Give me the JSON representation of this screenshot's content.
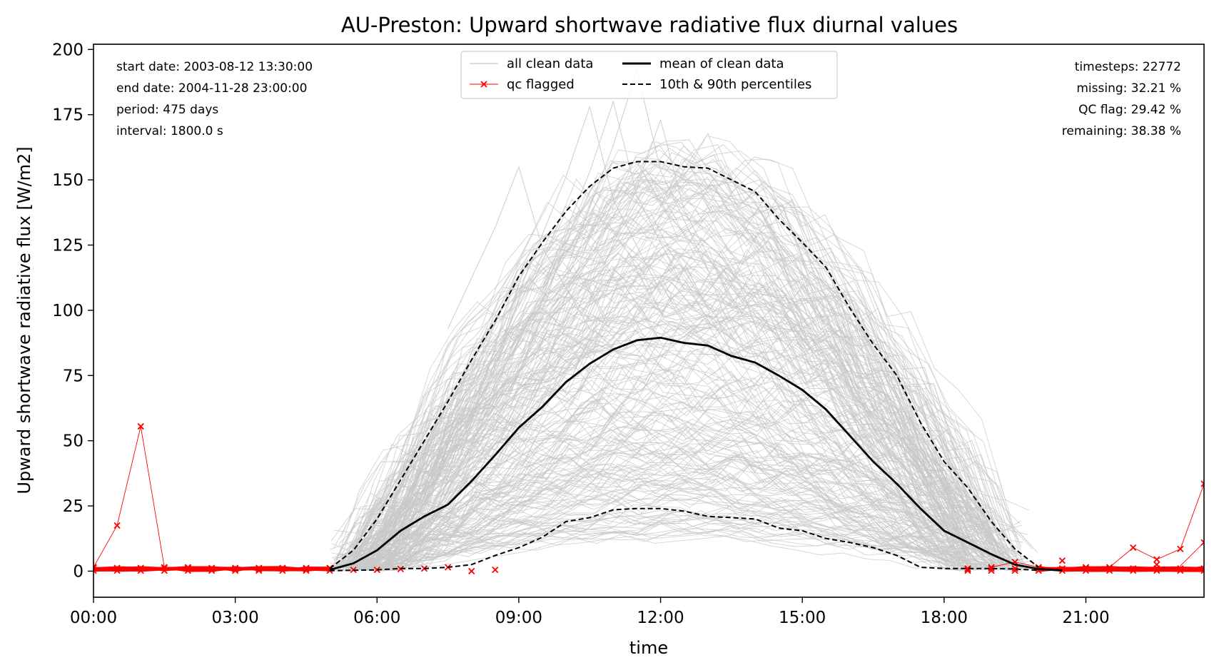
{
  "chart_data": {
    "type": "line",
    "title": "AU-Preston: Upward shortwave radiative flux diurnal values",
    "xlabel": "time",
    "ylabel": "Upward shortwave radiative flux [W/m2]",
    "x_unit": "hours",
    "xlim": [
      0,
      23.5
    ],
    "ylim": [
      -10,
      202
    ],
    "x_ticks": [
      {
        "value": 0,
        "label": "00:00"
      },
      {
        "value": 3,
        "label": "03:00"
      },
      {
        "value": 6,
        "label": "06:00"
      },
      {
        "value": 9,
        "label": "09:00"
      },
      {
        "value": 12,
        "label": "12:00"
      },
      {
        "value": 15,
        "label": "15:00"
      },
      {
        "value": 18,
        "label": "18:00"
      },
      {
        "value": 21,
        "label": "21:00"
      }
    ],
    "y_ticks": [
      {
        "value": 0,
        "label": "0"
      },
      {
        "value": 25,
        "label": "25"
      },
      {
        "value": 50,
        "label": "50"
      },
      {
        "value": 75,
        "label": "75"
      },
      {
        "value": 100,
        "label": "100"
      },
      {
        "value": 125,
        "label": "125"
      },
      {
        "value": 150,
        "label": "150"
      },
      {
        "value": 175,
        "label": "175"
      },
      {
        "value": 200,
        "label": "200"
      }
    ],
    "grid": false,
    "legend_position": "top-center",
    "info_left": [
      "start date: 2003-08-12 13:30:00",
      "end date: 2004-11-28 23:00:00",
      "period: 475 days",
      "interval: 1800.0 s"
    ],
    "info_right": [
      "timesteps: 22772",
      "missing: 32.21 %",
      "QC flag: 29.42 %",
      "remaining: 38.38 %"
    ],
    "colors": {
      "clean": "#c8c8c8",
      "qc": "#ff0000",
      "mean": "#000000",
      "percentile": "#000000"
    },
    "series": [
      {
        "name": "mean of clean data",
        "style": "solid",
        "x": [
          5.0,
          5.5,
          6.0,
          6.5,
          7.0,
          7.5,
          8.0,
          8.5,
          9.0,
          9.5,
          10.0,
          10.5,
          11.0,
          11.5,
          12.0,
          12.5,
          13.0,
          13.5,
          14.0,
          14.5,
          15.0,
          15.5,
          16.0,
          16.5,
          17.0,
          17.5,
          18.0,
          18.5,
          19.0,
          19.5,
          20.0,
          20.5
        ],
        "y": [
          0.5,
          3,
          8,
          15.5,
          21,
          25.5,
          34.5,
          44.5,
          55,
          63,
          72.5,
          79.5,
          85,
          88.5,
          89.5,
          87.5,
          86.5,
          82.5,
          80,
          75,
          69.5,
          62,
          52,
          42,
          33.5,
          24,
          15.5,
          11,
          6.5,
          2.5,
          0.8,
          0.3
        ]
      },
      {
        "name": "10th & 90th percentiles",
        "style": "dashed",
        "x": [
          5.0,
          5.5,
          6.0,
          6.5,
          7.0,
          7.5,
          8.0,
          8.5,
          9.0,
          9.5,
          10.0,
          10.5,
          11.0,
          11.5,
          12.0,
          12.5,
          13.0,
          13.5,
          14.0,
          14.5,
          15.0,
          15.5,
          16.0,
          16.5,
          17.0,
          17.5,
          18.0,
          18.5,
          19.0,
          19.5,
          20.0
        ],
        "y": [
          1,
          8,
          20,
          35,
          50,
          65,
          81,
          96,
          113,
          126,
          138,
          147.5,
          154.5,
          157,
          157,
          155,
          154.5,
          150,
          145.5,
          135,
          126,
          116.5,
          101,
          87,
          75,
          57,
          42,
          32,
          19,
          8.5,
          1.5
        ]
      },
      {
        "name": "10th percentile",
        "style": "dashed",
        "x": [
          5.0,
          5.5,
          6.0,
          6.5,
          7.0,
          7.5,
          8.0,
          8.5,
          9.0,
          9.5,
          10.0,
          10.5,
          11.0,
          11.5,
          12.0,
          12.5,
          13.0,
          13.5,
          14.0,
          14.5,
          15.0,
          15.5,
          16.0,
          16.5,
          17.0,
          17.5,
          18.0,
          18.5,
          19.0,
          19.5,
          20.0
        ],
        "y": [
          0.2,
          0.3,
          0.5,
          1,
          1,
          1.5,
          2.5,
          6,
          9,
          13,
          19,
          20.5,
          23.5,
          24,
          24,
          23,
          21,
          20.5,
          20,
          16.5,
          15.5,
          12.5,
          11,
          9,
          6,
          1.5,
          1,
          1,
          1,
          0.8,
          0.3
        ]
      },
      {
        "name": "qc flagged",
        "style": "marker-x",
        "x": [
          0.0,
          0.5,
          1.0,
          1.5,
          2.0,
          2.5,
          3.0,
          3.5,
          4.0,
          4.5,
          5.0,
          5.5,
          6.0,
          6.5,
          7.0,
          7.5,
          8.0,
          8.5,
          18.5,
          19.0,
          19.5,
          20.0,
          20.5,
          21.0,
          21.5,
          22.0,
          22.5,
          23.0,
          23.5
        ],
        "y": [
          1.5,
          17.5,
          55.5,
          1.5,
          1.5,
          0.8,
          0.8,
          0.8,
          1,
          0.8,
          1,
          0.5,
          0.5,
          0.8,
          1,
          1.5,
          0,
          0.5,
          0.8,
          1.5,
          3.5,
          1.5,
          4,
          1.5,
          1.5,
          9,
          4.5,
          8.5,
          33.5
        ]
      },
      {
        "name": "all clean data",
        "style": "thin",
        "x": [],
        "y": []
      }
    ],
    "legend": [
      {
        "label": "all clean data",
        "style": "thin"
      },
      {
        "label": "qc flagged",
        "style": "marker-x"
      },
      {
        "label": "mean of clean data",
        "style": "solid"
      },
      {
        "label": "10th & 90th percentiles",
        "style": "dashed"
      }
    ]
  }
}
